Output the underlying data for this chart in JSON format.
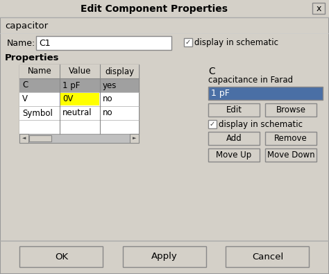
{
  "title": "Edit Component Properties",
  "bg_color": "#d4d0c8",
  "component_label": "capacitor",
  "name_label": "Name:",
  "name_value": "C1",
  "display_schematic_label": "display in schematic",
  "properties_label": "Properties",
  "table_headers": [
    "Name",
    "Value",
    "display"
  ],
  "table_rows": [
    [
      "C",
      "1 pF",
      "yes"
    ],
    [
      "V",
      "0V",
      "no"
    ],
    [
      "Symbol",
      "neutral",
      "no"
    ]
  ],
  "row0_bg": "#a0a0a0",
  "row1_value_bg": "#ffff00",
  "right_label": "C",
  "right_sublabel": "capacitance in Farad",
  "right_field_value": "1 pF",
  "right_field_bg": "#4a6fa5",
  "right_field_text_color": "#ffffff",
  "button_bg": "#d4d0c8",
  "field_bg": "#ffffff",
  "text_color": "#000000",
  "close_btn": "x",
  "window_border_color": "#888888"
}
